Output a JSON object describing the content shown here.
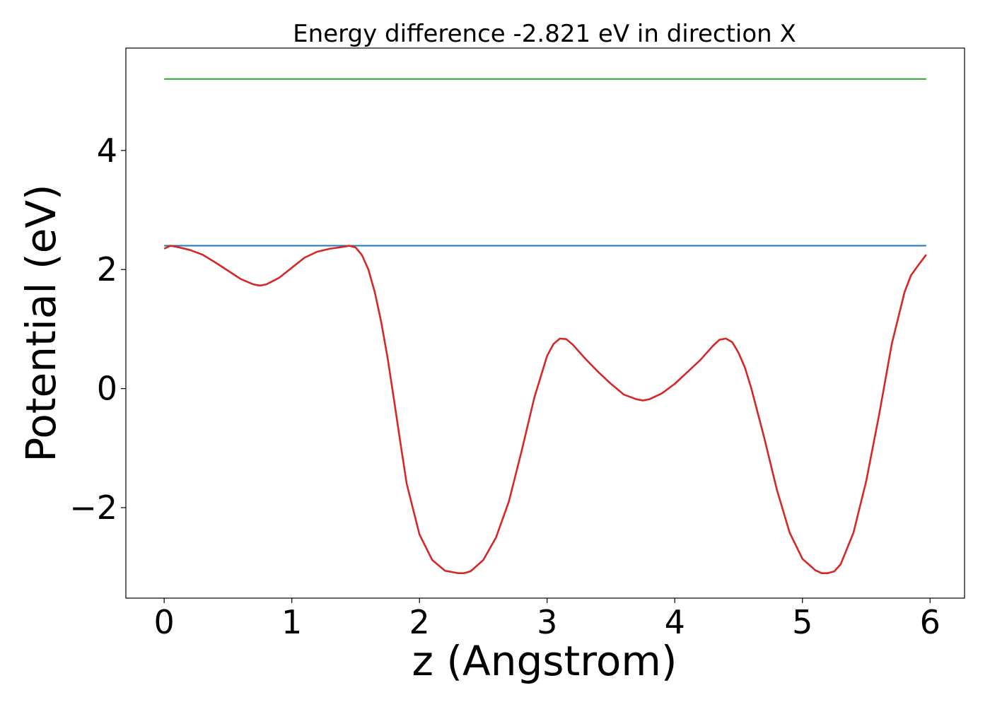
{
  "chart_data": {
    "type": "line",
    "title": "Energy difference -2.821 eV in direction X",
    "xlabel": "z (Angstrom)",
    "ylabel": "Potential (eV)",
    "xlim": [
      -0.3,
      6.27
    ],
    "ylim": [
      -3.52,
      5.72
    ],
    "xticks": [
      0,
      1,
      2,
      3,
      4,
      5,
      6
    ],
    "xtick_labels": [
      "0",
      "1",
      "2",
      "3",
      "4",
      "5",
      "6"
    ],
    "yticks": [
      -2,
      0,
      2,
      4
    ],
    "ytick_labels": [
      "−2",
      "0",
      "2",
      "4"
    ],
    "grid": false,
    "series": [
      {
        "color": "#2ca02c",
        "x": [
          0,
          5.97
        ],
        "y": [
          5.2,
          5.2
        ]
      },
      {
        "color": "#1f77b4",
        "x": [
          0,
          5.97
        ],
        "y": [
          2.4,
          2.4
        ]
      },
      {
        "color": "#d62728",
        "x": [
          0,
          0.05,
          0.1,
          0.2,
          0.3,
          0.4,
          0.5,
          0.6,
          0.7,
          0.75,
          0.8,
          0.9,
          1.0,
          1.1,
          1.2,
          1.3,
          1.4,
          1.45,
          1.5,
          1.55,
          1.6,
          1.65,
          1.7,
          1.75,
          1.8,
          1.85,
          1.9,
          2.0,
          2.1,
          2.2,
          2.3,
          2.35,
          2.4,
          2.5,
          2.6,
          2.7,
          2.8,
          2.9,
          3.0,
          3.05,
          3.1,
          3.15,
          3.2,
          3.3,
          3.4,
          3.5,
          3.6,
          3.7,
          3.75,
          3.8,
          3.9,
          4.0,
          4.1,
          4.2,
          4.3,
          4.35,
          4.4,
          4.45,
          4.5,
          4.55,
          4.6,
          4.7,
          4.8,
          4.9,
          5.0,
          5.1,
          5.15,
          5.2,
          5.25,
          5.3,
          5.4,
          5.5,
          5.6,
          5.7,
          5.8,
          5.85,
          5.9,
          5.97
        ],
        "y": [
          2.35,
          2.4,
          2.38,
          2.33,
          2.25,
          2.12,
          1.98,
          1.84,
          1.75,
          1.73,
          1.75,
          1.86,
          2.03,
          2.2,
          2.3,
          2.35,
          2.38,
          2.4,
          2.37,
          2.24,
          2.0,
          1.62,
          1.12,
          0.52,
          -0.18,
          -0.9,
          -1.6,
          -2.45,
          -2.88,
          -3.06,
          -3.1,
          -3.1,
          -3.07,
          -2.88,
          -2.5,
          -1.9,
          -1.05,
          -0.15,
          0.55,
          0.75,
          0.84,
          0.83,
          0.74,
          0.5,
          0.28,
          0.08,
          -0.1,
          -0.18,
          -0.2,
          -0.18,
          -0.08,
          0.08,
          0.28,
          0.48,
          0.72,
          0.82,
          0.84,
          0.78,
          0.6,
          0.35,
          0.0,
          -0.82,
          -1.7,
          -2.42,
          -2.86,
          -3.05,
          -3.1,
          -3.1,
          -3.07,
          -2.95,
          -2.42,
          -1.55,
          -0.45,
          0.75,
          1.62,
          1.9,
          2.05,
          2.25
        ]
      }
    ]
  }
}
